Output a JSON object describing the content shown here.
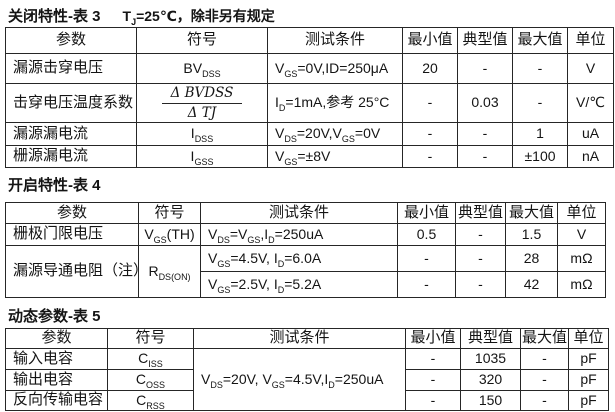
{
  "colors": {
    "background": "#ffffff",
    "text": "#141414",
    "border": "#262626"
  },
  "sections": [
    {
      "title": "关闭特性-表 3",
      "note": "T~J~=25℃，除非另有规定",
      "headers": [
        "参数",
        "符号",
        "测试条件",
        "最小值",
        "典型值",
        "最大值",
        "单位"
      ],
      "rows": [
        {
          "param": "漏源击穿电压",
          "symbol": "BV~DSS~",
          "cond": "V~GS~=0V,ID=250μA",
          "min": "20",
          "typ": "-",
          "max": "-",
          "unit": "V"
        },
        {
          "param": "击穿电压温度系数",
          "symbol_frac_num": "Δ BVDSS",
          "symbol_frac_den": "Δ TJ",
          "cond": "I~D~=1mA,参考 25°C",
          "min": "-",
          "typ": "0.03",
          "max": "-",
          "unit": "V/℃"
        },
        {
          "param": "漏源漏电流",
          "symbol": "I~DSS~",
          "cond": "V~DS~=20V,V~GS~=0V",
          "min": "-",
          "typ": "-",
          "max": "1",
          "unit": "uA"
        },
        {
          "param": "栅源漏电流",
          "symbol": "I~GSS~",
          "cond": "V~GS~=±8V",
          "min": "-",
          "typ": "-",
          "max": "±100",
          "unit": "nA"
        }
      ]
    },
    {
      "title": "开启特性-表 4",
      "headers": [
        "参数",
        "符号",
        "测试条件",
        "最小值",
        "典型值",
        "最大值",
        "单位"
      ],
      "rows": [
        {
          "param": "栅极门限电压",
          "symbol": "V~GS~(TH)",
          "cond": "V~DS~=V~GS~,I~D~=250uA",
          "min": "0.5",
          "typ": "-",
          "max": "1.5",
          "unit": "V"
        },
        {
          "param": "漏源导通电阻（注）",
          "symbol": "R~DS(ON)~",
          "sub_rows": [
            {
              "cond": "V~GS~=4.5V, I~D~=6.0A",
              "min": "-",
              "typ": "-",
              "max": "28",
              "unit": "mΩ"
            },
            {
              "cond": "V~GS~=2.5V, I~D~=5.2A",
              "min": "-",
              "typ": "-",
              "max": "42",
              "unit": "mΩ"
            }
          ]
        }
      ]
    },
    {
      "title": "动态参数-表 5",
      "headers": [
        "参数",
        "符号",
        "测试条件",
        "最小值",
        "典型值",
        "最大值",
        "单位"
      ],
      "cond_shared": "V~DS~=20V, V~GS~=4.5V,I~D~=250uA",
      "rows": [
        {
          "param": "输入电容",
          "symbol": "C~ISS~",
          "min": "-",
          "typ": "1035",
          "max": "-",
          "unit": "pF"
        },
        {
          "param": "输出电容",
          "symbol": "C~OSS~",
          "min": "-",
          "typ": "320",
          "max": "-",
          "unit": "pF"
        },
        {
          "param": "反向传输电容",
          "symbol": "C~RSS~",
          "min": "-",
          "typ": "150",
          "max": "-",
          "unit": "pF"
        }
      ]
    }
  ]
}
